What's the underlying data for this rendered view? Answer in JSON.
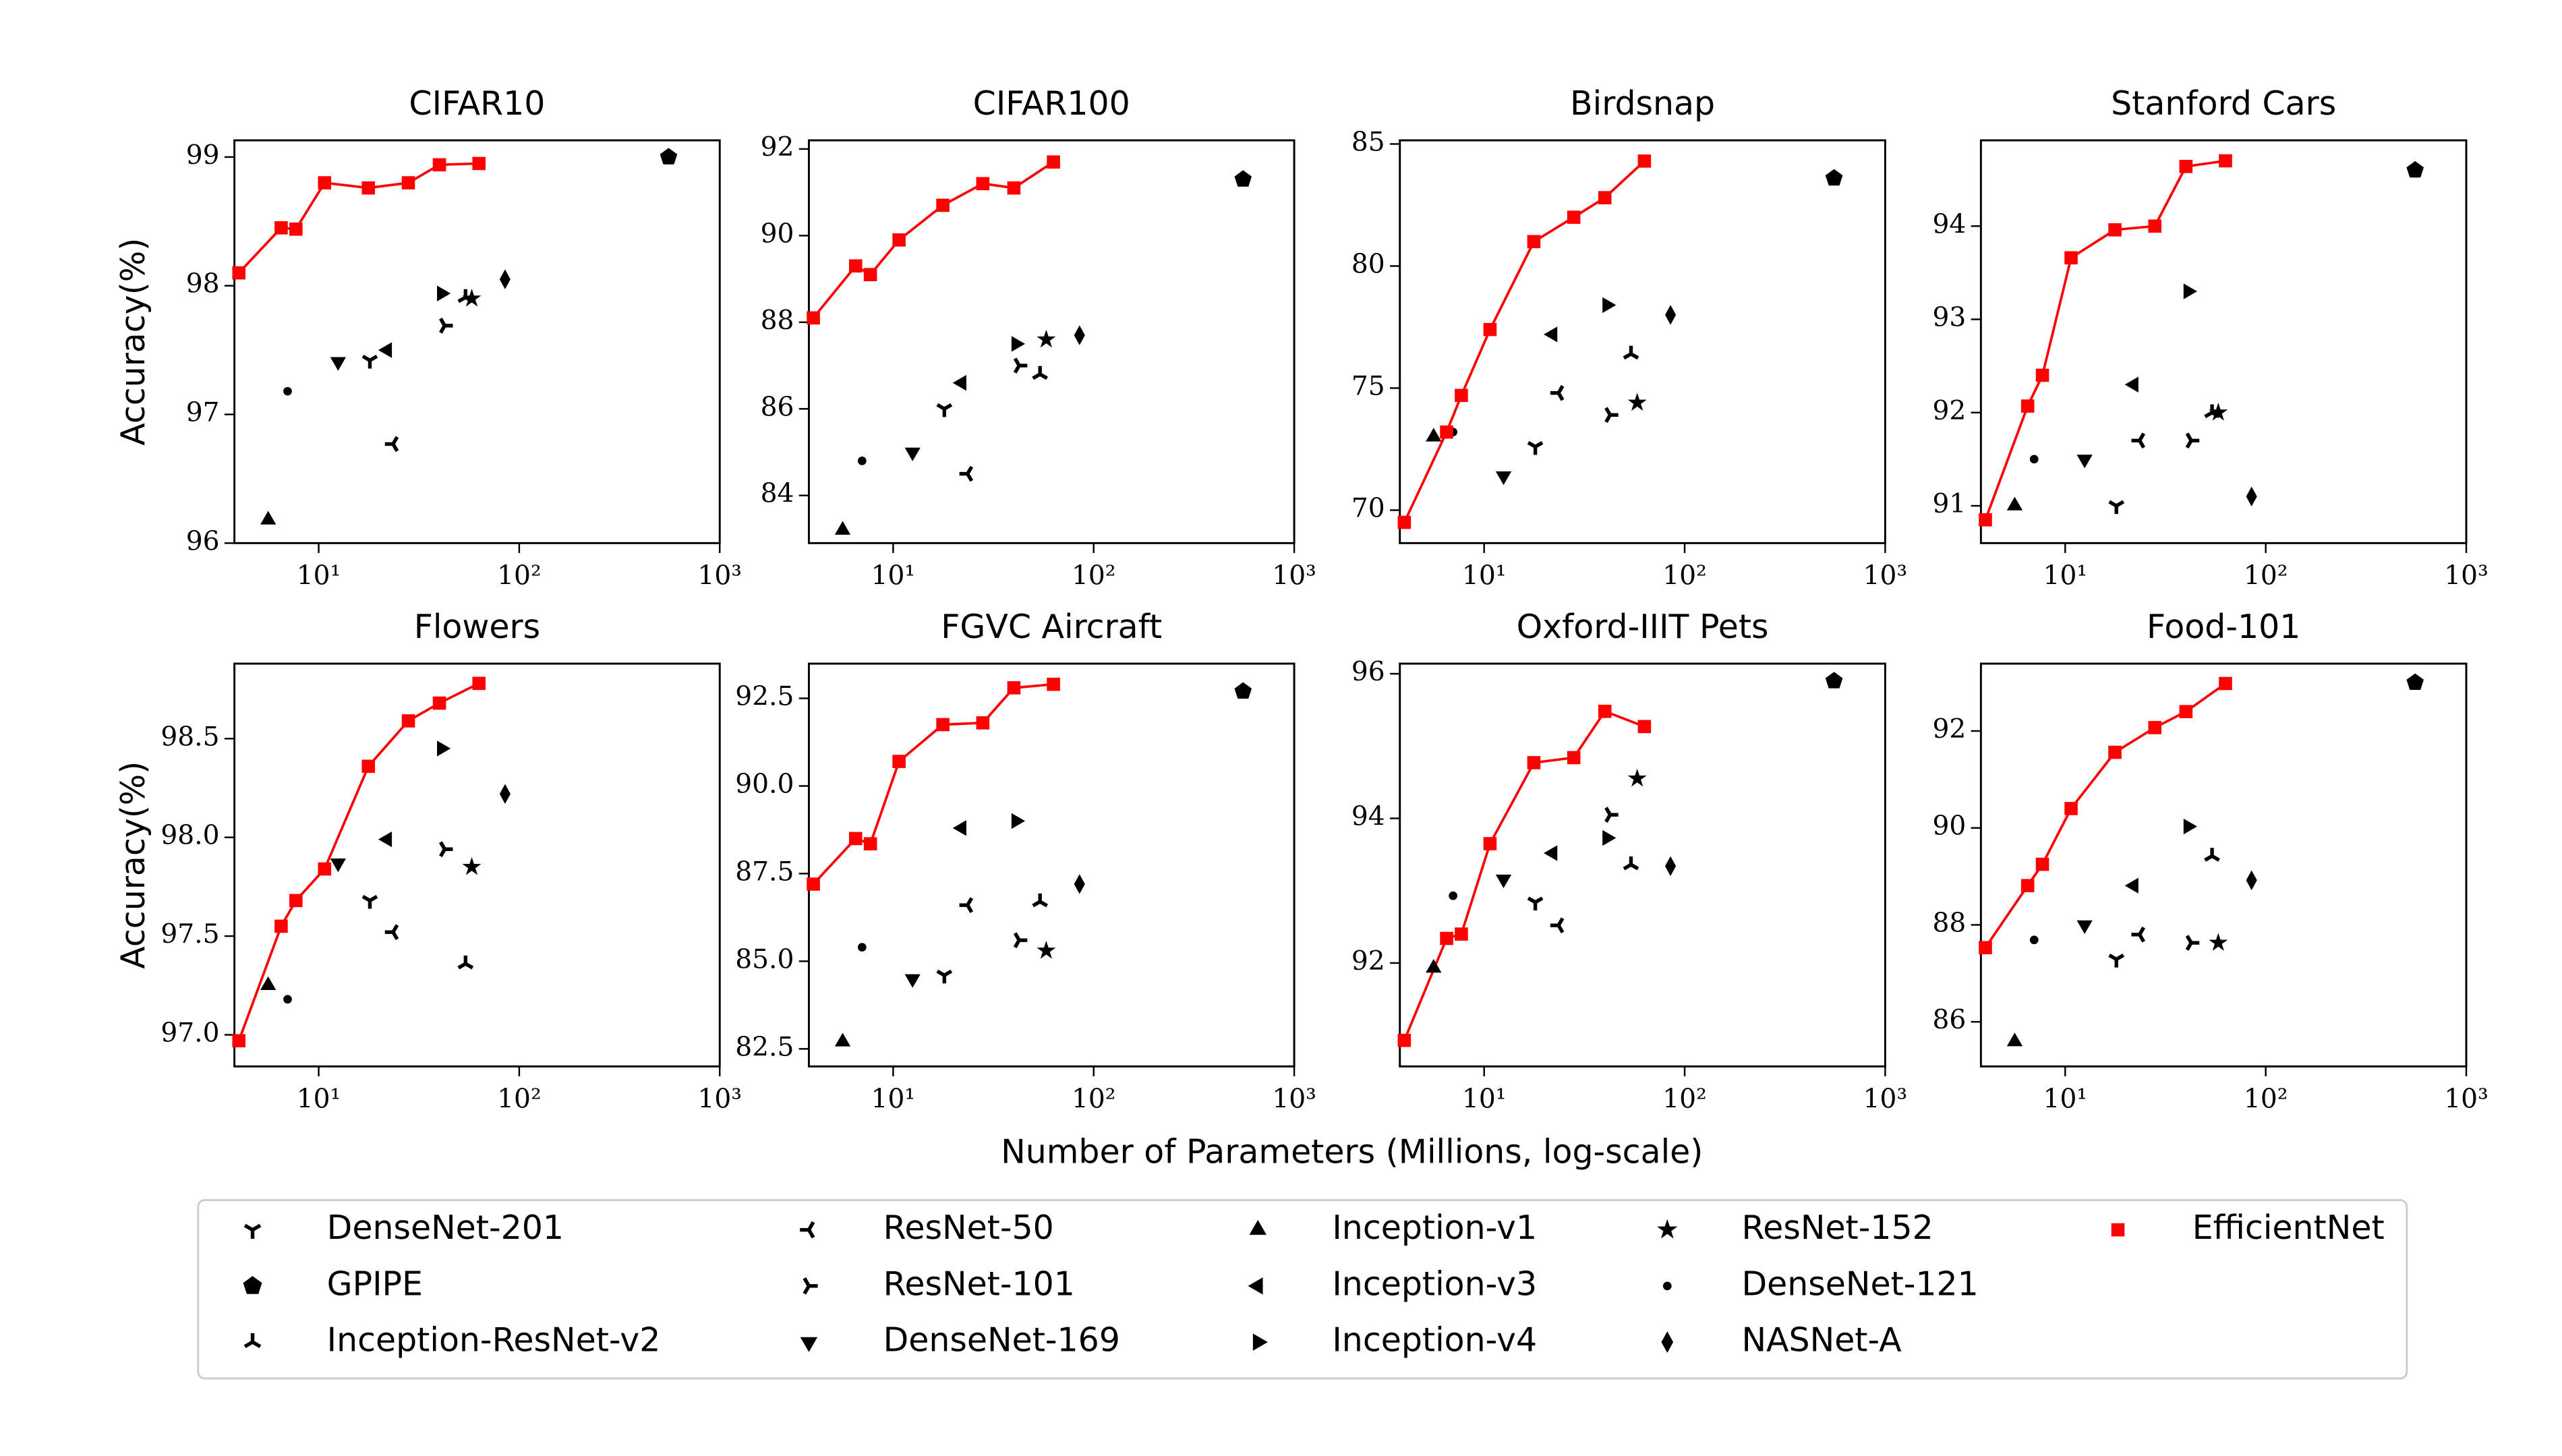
{
  "xlabel": "Number of Parameters (Millions, log-scale)",
  "chart_data": [
    {
      "type": "scatter",
      "title": "CIFAR10",
      "ylabel": "Accuracy(%)",
      "xscale": "log",
      "xlim": [
        3.8,
        1000
      ],
      "xticks": [
        {
          "value": 10,
          "label": "10¹"
        },
        {
          "value": 100,
          "label": "10²"
        },
        {
          "value": 1000,
          "label": "10³"
        }
      ],
      "ylim": [
        96.0,
        99.13
      ],
      "yticks": [
        96,
        97,
        98,
        99
      ],
      "series": [
        {
          "name": "DenseNet-201",
          "color": "#000000",
          "marker": "1",
          "x": [
            18
          ],
          "values": [
            97.42
          ]
        },
        {
          "name": "GPIPE",
          "color": "#000000",
          "marker": "p",
          "x": [
            556
          ],
          "values": [
            99.0
          ]
        },
        {
          "name": "Inception-ResNet-v2",
          "color": "#000000",
          "marker": "2",
          "x": [
            54
          ],
          "values": [
            97.91
          ]
        },
        {
          "name": "ResNet-50",
          "color": "#000000",
          "marker": "3",
          "x": [
            23.5
          ],
          "values": [
            96.77
          ]
        },
        {
          "name": "ResNet-101",
          "color": "#000000",
          "marker": "4",
          "x": [
            42.5
          ],
          "values": [
            97.69
          ]
        },
        {
          "name": "DenseNet-169",
          "color": "#000000",
          "marker": "v",
          "x": [
            12.5
          ],
          "values": [
            97.41
          ]
        },
        {
          "name": "Inception-v1",
          "color": "#000000",
          "marker": "^",
          "x": [
            5.6
          ],
          "values": [
            96.18
          ]
        },
        {
          "name": "Inception-v3",
          "color": "#000000",
          "marker": "<",
          "x": [
            22
          ],
          "values": [
            97.5
          ]
        },
        {
          "name": "Inception-v4",
          "color": "#000000",
          "marker": ">",
          "x": [
            41
          ],
          "values": [
            97.94
          ]
        },
        {
          "name": "ResNet-152",
          "color": "#000000",
          "marker": "*",
          "x": [
            58
          ],
          "values": [
            97.9
          ]
        },
        {
          "name": "DenseNet-121",
          "color": "#000000",
          "marker": ".",
          "x": [
            7
          ],
          "values": [
            97.18
          ]
        },
        {
          "name": "NASNet-A",
          "color": "#000000",
          "marker": "d",
          "x": [
            85
          ],
          "values": [
            98.05
          ]
        },
        {
          "name": "EfficientNet",
          "color": "#ff0000",
          "marker": "s",
          "line": true,
          "x": [
            4,
            6.5,
            7.7,
            10.7,
            17.7,
            28,
            40,
            63
          ],
          "values": [
            98.1,
            98.45,
            98.44,
            98.8,
            98.76,
            98.8,
            98.94,
            98.95
          ]
        }
      ]
    },
    {
      "type": "scatter",
      "title": "CIFAR100",
      "xscale": "log",
      "xlim": [
        3.8,
        1000
      ],
      "xticks": [
        {
          "value": 10,
          "label": "10¹"
        },
        {
          "value": 100,
          "label": "10²"
        },
        {
          "value": 1000,
          "label": "10³"
        }
      ],
      "ylim": [
        82.9,
        92.2
      ],
      "yticks": [
        84,
        86,
        88,
        90,
        92
      ],
      "series": [
        {
          "x": [
            18
          ],
          "values": [
            86.0
          ]
        },
        {
          "x": [
            556
          ],
          "values": [
            91.3
          ]
        },
        {
          "x": [
            54
          ],
          "values": [
            86.8
          ]
        },
        {
          "x": [
            23.5
          ],
          "values": [
            84.5
          ]
        },
        {
          "x": [
            42.5
          ],
          "values": [
            87.0
          ]
        },
        {
          "x": [
            12.5
          ],
          "values": [
            85.0
          ]
        },
        {
          "x": [
            5.6
          ],
          "values": [
            83.2
          ]
        },
        {
          "x": [
            22
          ],
          "values": [
            86.6
          ]
        },
        {
          "x": [
            41
          ],
          "values": [
            87.5
          ]
        },
        {
          "x": [
            58
          ],
          "values": [
            87.6
          ]
        },
        {
          "x": [
            7
          ],
          "values": [
            84.8
          ]
        },
        {
          "x": [
            85
          ],
          "values": [
            87.7
          ]
        },
        {
          "x": [
            4,
            6.5,
            7.7,
            10.7,
            17.7,
            28,
            40,
            63
          ],
          "values": [
            88.1,
            89.3,
            89.1,
            89.9,
            90.7,
            91.2,
            91.1,
            91.7
          ]
        }
      ]
    },
    {
      "type": "scatter",
      "title": "Birdsnap",
      "xscale": "log",
      "xlim": [
        3.8,
        1000
      ],
      "xticks": [
        {
          "value": 10,
          "label": "10¹"
        },
        {
          "value": 100,
          "label": "10²"
        },
        {
          "value": 1000,
          "label": "10³"
        }
      ],
      "ylim": [
        68.65,
        85.15
      ],
      "yticks": [
        70,
        75,
        80,
        85
      ],
      "series": [
        {
          "x": [
            18
          ],
          "values": [
            72.6
          ]
        },
        {
          "x": [
            556
          ],
          "values": [
            83.6
          ]
        },
        {
          "x": [
            54
          ],
          "values": [
            76.4
          ]
        },
        {
          "x": [
            23.5
          ],
          "values": [
            74.8
          ]
        },
        {
          "x": [
            42.5
          ],
          "values": [
            73.9
          ]
        },
        {
          "x": [
            12.5
          ],
          "values": [
            71.4
          ]
        },
        {
          "x": [
            5.6
          ],
          "values": [
            73.0
          ]
        },
        {
          "x": [
            22
          ],
          "values": [
            77.2
          ]
        },
        {
          "x": [
            41
          ],
          "values": [
            78.4
          ]
        },
        {
          "x": [
            58
          ],
          "values": [
            74.4
          ]
        },
        {
          "x": [
            7
          ],
          "values": [
            73.2
          ]
        },
        {
          "x": [
            85
          ],
          "values": [
            78.0
          ]
        },
        {
          "x": [
            4,
            6.5,
            7.7,
            10.7,
            17.7,
            28,
            40,
            63
          ],
          "values": [
            69.5,
            73.2,
            74.7,
            77.4,
            81.0,
            82.0,
            82.8,
            84.3
          ]
        }
      ]
    },
    {
      "type": "scatter",
      "title": "Stanford Cars",
      "xscale": "log",
      "xlim": [
        3.8,
        1000
      ],
      "xticks": [
        {
          "value": 10,
          "label": "10¹"
        },
        {
          "value": 100,
          "label": "10²"
        },
        {
          "value": 1000,
          "label": "10³"
        }
      ],
      "ylim": [
        90.6,
        94.92
      ],
      "yticks": [
        91,
        92,
        93,
        94
      ],
      "series": [
        {
          "x": [
            18
          ],
          "values": [
            91.0
          ]
        },
        {
          "x": [
            556
          ],
          "values": [
            94.6
          ]
        },
        {
          "x": [
            54
          ],
          "values": [
            92.0
          ]
        },
        {
          "x": [
            23.5
          ],
          "values": [
            91.7
          ]
        },
        {
          "x": [
            42.5
          ],
          "values": [
            91.7
          ]
        },
        {
          "x": [
            12.5
          ],
          "values": [
            91.5
          ]
        },
        {
          "x": [
            5.6
          ],
          "values": [
            91.0
          ]
        },
        {
          "x": [
            22
          ],
          "values": [
            92.3
          ]
        },
        {
          "x": [
            41
          ],
          "values": [
            93.3
          ]
        },
        {
          "x": [
            58
          ],
          "values": [
            92.0
          ]
        },
        {
          "x": [
            7
          ],
          "values": [
            91.5
          ]
        },
        {
          "x": [
            85
          ],
          "values": [
            91.1
          ]
        },
        {
          "x": [
            4,
            6.5,
            7.7,
            10.7,
            17.7,
            28,
            40,
            63
          ],
          "values": [
            90.85,
            92.07,
            92.4,
            93.66,
            93.96,
            94.0,
            94.64,
            94.7
          ]
        }
      ]
    },
    {
      "type": "scatter",
      "title": "Flowers",
      "ylabel": "Accuracy(%)",
      "xscale": "log",
      "xlim": [
        3.8,
        1000
      ],
      "xticks": [
        {
          "value": 10,
          "label": "10¹"
        },
        {
          "value": 100,
          "label": "10²"
        },
        {
          "value": 1000,
          "label": "10³"
        }
      ],
      "ylim": [
        96.84,
        98.88
      ],
      "yticks": [
        {
          "value": 97,
          "label": "97.0"
        },
        97.5,
        {
          "value": 98,
          "label": "98.0"
        },
        98.5
      ],
      "series": [
        {
          "x": [
            18
          ],
          "values": [
            97.68
          ]
        },
        {
          "x": [],
          "values": []
        },
        {
          "x": [
            54
          ],
          "values": [
            97.36
          ]
        },
        {
          "x": [
            23.5
          ],
          "values": [
            97.52
          ]
        },
        {
          "x": [
            42.5
          ],
          "values": [
            97.94
          ]
        },
        {
          "x": [
            12.5
          ],
          "values": [
            97.87
          ]
        },
        {
          "x": [
            5.6
          ],
          "values": [
            97.25
          ]
        },
        {
          "x": [
            22
          ],
          "values": [
            97.99
          ]
        },
        {
          "x": [
            41
          ],
          "values": [
            98.45
          ]
        },
        {
          "x": [
            58
          ],
          "values": [
            97.85
          ]
        },
        {
          "x": [
            7
          ],
          "values": [
            97.18
          ]
        },
        {
          "x": [
            85
          ],
          "values": [
            98.22
          ]
        },
        {
          "x": [
            4,
            6.5,
            7.7,
            10.7,
            17.7,
            28,
            40,
            63
          ],
          "values": [
            96.97,
            97.55,
            97.68,
            97.84,
            98.36,
            98.59,
            98.68,
            98.78
          ]
        }
      ]
    },
    {
      "type": "scatter",
      "title": "FGVC Aircraft",
      "xscale": "log",
      "xlim": [
        3.8,
        1000
      ],
      "xticks": [
        {
          "value": 10,
          "label": "10¹"
        },
        {
          "value": 100,
          "label": "10²"
        },
        {
          "value": 1000,
          "label": "10³"
        }
      ],
      "ylim": [
        82.0,
        93.49
      ],
      "yticks": [
        82.5,
        {
          "value": 85,
          "label": "85.0"
        },
        87.5,
        {
          "value": 90,
          "label": "90.0"
        },
        92.5
      ],
      "series": [
        {
          "x": [
            18
          ],
          "values": [
            84.6
          ]
        },
        {
          "x": [
            556
          ],
          "values": [
            92.7
          ]
        },
        {
          "x": [
            54
          ],
          "values": [
            86.7
          ]
        },
        {
          "x": [
            23.5
          ],
          "values": [
            86.6
          ]
        },
        {
          "x": [
            42.5
          ],
          "values": [
            85.6
          ]
        },
        {
          "x": [
            12.5
          ],
          "values": [
            84.5
          ]
        },
        {
          "x": [
            5.6
          ],
          "values": [
            82.7
          ]
        },
        {
          "x": [
            22
          ],
          "values": [
            88.8
          ]
        },
        {
          "x": [
            41
          ],
          "values": [
            89.0
          ]
        },
        {
          "x": [
            58
          ],
          "values": [
            85.3
          ]
        },
        {
          "x": [
            7
          ],
          "values": [
            85.4
          ]
        },
        {
          "x": [
            85
          ],
          "values": [
            87.2
          ]
        },
        {
          "x": [
            4,
            6.5,
            7.7,
            10.7,
            17.7,
            28,
            40,
            63
          ],
          "values": [
            87.2,
            88.5,
            88.35,
            90.7,
            91.75,
            91.8,
            92.8,
            92.9
          ]
        }
      ]
    },
    {
      "type": "scatter",
      "title": "Oxford-IIIT Pets",
      "xscale": "log",
      "xlim": [
        3.8,
        1000
      ],
      "xticks": [
        {
          "value": 10,
          "label": "10¹"
        },
        {
          "value": 100,
          "label": "10²"
        },
        {
          "value": 1000,
          "label": "10³"
        }
      ],
      "ylim": [
        90.57,
        96.14
      ],
      "yticks": [
        92,
        94,
        96
      ],
      "series": [
        {
          "x": [
            18
          ],
          "values": [
            92.84
          ]
        },
        {
          "x": [
            556
          ],
          "values": [
            95.9
          ]
        },
        {
          "x": [
            54
          ],
          "values": [
            93.36
          ]
        },
        {
          "x": [
            23.5
          ],
          "values": [
            92.52
          ]
        },
        {
          "x": [
            42.5
          ],
          "values": [
            94.05
          ]
        },
        {
          "x": [
            12.5
          ],
          "values": [
            93.16
          ]
        },
        {
          "x": [
            5.6
          ],
          "values": [
            91.93
          ]
        },
        {
          "x": [
            22
          ],
          "values": [
            93.52
          ]
        },
        {
          "x": [
            41
          ],
          "values": [
            93.73
          ]
        },
        {
          "x": [
            58
          ],
          "values": [
            94.55
          ]
        },
        {
          "x": [
            7
          ],
          "values": [
            92.93
          ]
        },
        {
          "x": [
            85
          ],
          "values": [
            93.34
          ]
        },
        {
          "x": [
            4,
            6.5,
            7.7,
            10.7,
            17.7,
            28,
            40,
            63
          ],
          "values": [
            90.93,
            92.34,
            92.4,
            93.65,
            94.77,
            94.84,
            95.48,
            95.27
          ]
        }
      ]
    },
    {
      "type": "scatter",
      "title": "Food-101",
      "xscale": "log",
      "xlim": [
        3.8,
        1000
      ],
      "xticks": [
        {
          "value": 10,
          "label": "10¹"
        },
        {
          "value": 100,
          "label": "10²"
        },
        {
          "value": 1000,
          "label": "10³"
        }
      ],
      "ylim": [
        85.08,
        93.39
      ],
      "yticks": [
        86,
        88,
        90,
        92
      ],
      "series": [
        {
          "x": [
            18
          ],
          "values": [
            87.29
          ]
        },
        {
          "x": [
            556
          ],
          "values": [
            93.0
          ]
        },
        {
          "x": [
            54
          ],
          "values": [
            89.42
          ]
        },
        {
          "x": [
            23.5
          ],
          "values": [
            87.8
          ]
        },
        {
          "x": [
            42.5
          ],
          "values": [
            87.63
          ]
        },
        {
          "x": [
            12.5
          ],
          "values": [
            88.0
          ]
        },
        {
          "x": [
            5.6
          ],
          "values": [
            85.59
          ]
        },
        {
          "x": [
            22
          ],
          "values": [
            88.81
          ]
        },
        {
          "x": [
            41
          ],
          "values": [
            90.03
          ]
        },
        {
          "x": [
            58
          ],
          "values": [
            87.63
          ]
        },
        {
          "x": [
            7
          ],
          "values": [
            87.69
          ]
        },
        {
          "x": [
            85
          ],
          "values": [
            88.92
          ]
        },
        {
          "x": [
            4,
            6.5,
            7.7,
            10.7,
            17.7,
            28,
            40,
            63
          ],
          "values": [
            87.53,
            88.81,
            89.25,
            90.4,
            91.56,
            92.07,
            92.4,
            92.98
          ]
        }
      ]
    }
  ]
}
